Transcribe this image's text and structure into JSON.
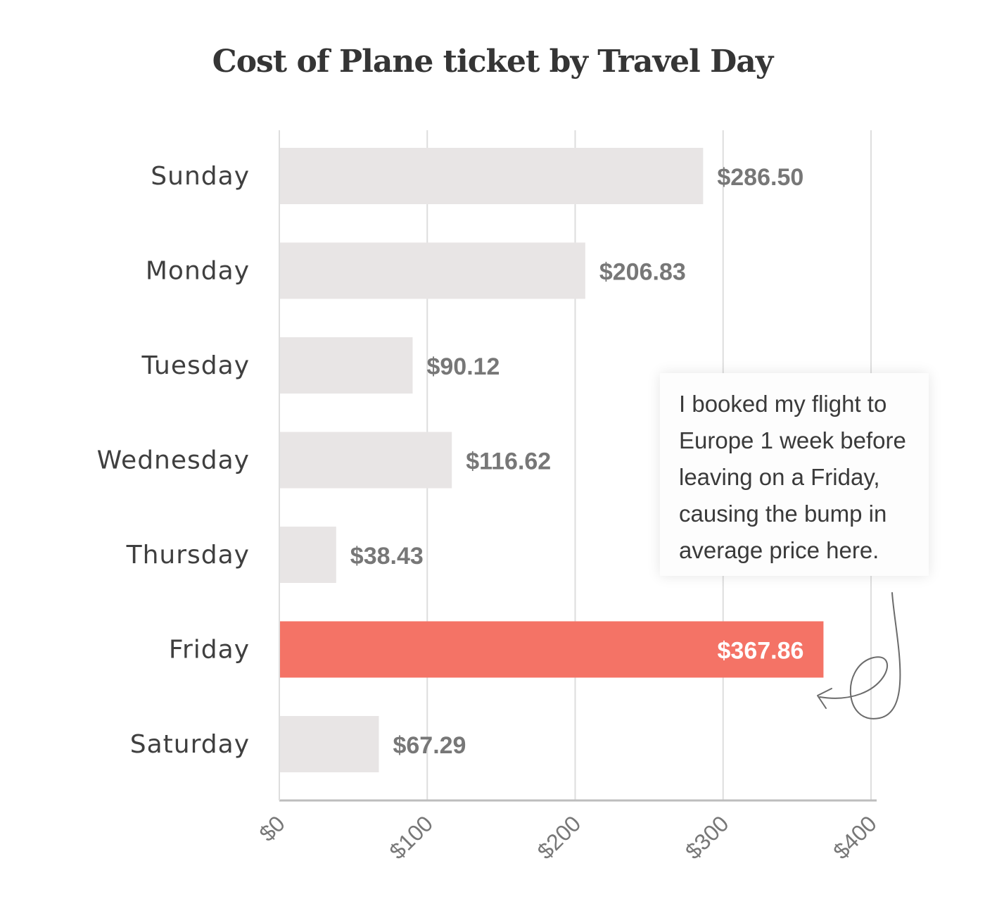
{
  "chart_data": {
    "type": "bar",
    "orientation": "horizontal",
    "title": "Cost of Plane ticket by Travel Day",
    "xlabel": "",
    "ylabel": "",
    "categories": [
      "Sunday",
      "Monday",
      "Tuesday",
      "Wednesday",
      "Thursday",
      "Friday",
      "Saturday"
    ],
    "values": [
      286.5,
      206.83,
      90.12,
      116.62,
      38.43,
      367.86,
      67.29
    ],
    "value_labels": [
      "$286.50",
      "$206.83",
      "$90.12",
      "$116.62",
      "$38.43",
      "$367.86",
      "$67.29"
    ],
    "highlight_category": "Friday",
    "xlim": [
      0,
      400
    ],
    "x_ticks": [
      0,
      100,
      200,
      300,
      400
    ],
    "x_tick_labels": [
      "$0",
      "$100",
      "$200",
      "$300",
      "$400"
    ],
    "grid": true,
    "colors": {
      "bar": "#e8e5e5",
      "highlight": "#f47366",
      "value_label": "#777777",
      "highlight_label": "#ffffff",
      "grid": "#dedede",
      "axis": "#bdbdbd",
      "category_label": "#3f3f3f",
      "tick_label": "#777777"
    }
  },
  "annotation": {
    "lines": [
      "I booked my flight to",
      "Europe 1 week before",
      "leaving on a Friday,",
      "causing the bump in",
      "average price here."
    ],
    "points_to": "Friday",
    "arrow": "curly-arrow"
  }
}
